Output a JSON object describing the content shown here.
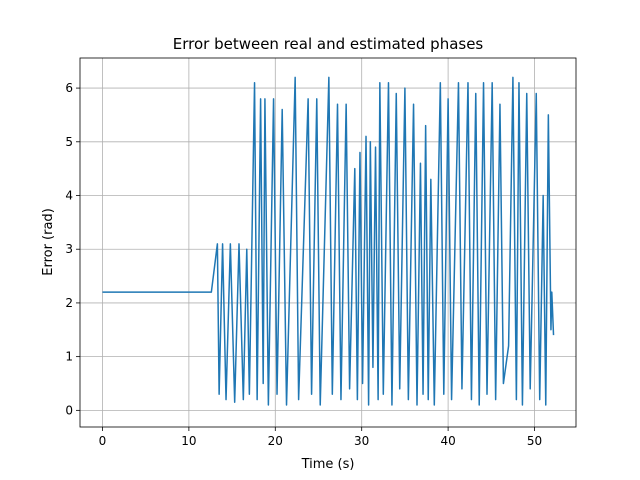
{
  "chart_data": {
    "type": "line",
    "title": "Error between real and estimated phases",
    "xlabel": "Time (s)",
    "ylabel": "Error (rad)",
    "x": [
      0,
      12.6,
      13.3,
      13.5,
      13.9,
      14.3,
      14.8,
      15.3,
      15.8,
      16.3,
      16.7,
      17.0,
      17.6,
      17.9,
      18.3,
      18.6,
      18.8,
      19.2,
      19.8,
      20.2,
      20.8,
      21.3,
      22.3,
      22.7,
      23.8,
      24.2,
      24.8,
      25.2,
      26.2,
      26.6,
      27.2,
      27.6,
      28.2,
      28.6,
      29.2,
      29.5,
      29.8,
      30.1,
      30.5,
      30.8,
      31.0,
      31.3,
      31.6,
      31.9,
      32.1,
      32.5,
      33.1,
      33.5,
      34.0,
      34.4,
      35.0,
      35.4,
      36.0,
      36.4,
      36.8,
      37.1,
      37.4,
      37.7,
      38.0,
      38.4,
      39.1,
      39.5,
      40.0,
      40.4,
      41.2,
      41.6,
      42.3,
      42.7,
      43.2,
      43.6,
      44.1,
      44.5,
      45.1,
      45.5,
      46.0,
      46.4,
      47.0,
      47.5,
      47.9,
      48.2,
      48.6,
      49.1,
      49.5,
      50.2,
      50.6,
      51.0,
      51.3,
      51.6,
      51.9,
      52.0,
      52.2
    ],
    "series": [
      {
        "name": "error",
        "color": "#1f77b4",
        "values": [
          2.2,
          2.2,
          3.1,
          0.3,
          3.1,
          0.2,
          3.1,
          0.15,
          3.1,
          0.2,
          3.0,
          0.3,
          6.1,
          0.2,
          5.8,
          0.5,
          5.8,
          0.1,
          5.8,
          0.3,
          5.6,
          0.1,
          6.2,
          0.2,
          5.8,
          0.3,
          5.8,
          0.1,
          6.2,
          0.3,
          5.7,
          0.2,
          5.7,
          0.4,
          4.5,
          0.2,
          4.8,
          0.5,
          5.1,
          0.1,
          5.0,
          0.8,
          4.9,
          0.2,
          6.1,
          0.3,
          6.1,
          0.1,
          5.9,
          0.4,
          6.0,
          0.2,
          5.7,
          0.1,
          4.6,
          0.3,
          5.3,
          0.2,
          4.3,
          0.1,
          6.1,
          0.3,
          5.8,
          0.2,
          6.1,
          0.4,
          6.1,
          0.2,
          5.9,
          0.1,
          6.1,
          0.3,
          6.1,
          0.2,
          5.7,
          0.5,
          1.2,
          6.2,
          0.2,
          6.1,
          0.1,
          5.9,
          0.4,
          5.9,
          0.2,
          4.0,
          0.1,
          5.5,
          1.5,
          2.2,
          1.4
        ]
      }
    ],
    "xlim": [
      -2.6,
      54.8
    ],
    "ylim": [
      -0.31,
      6.56
    ],
    "xticks": [
      0,
      10,
      20,
      30,
      40,
      50
    ],
    "yticks": [
      0,
      1,
      2,
      3,
      4,
      5,
      6
    ],
    "grid": true
  }
}
